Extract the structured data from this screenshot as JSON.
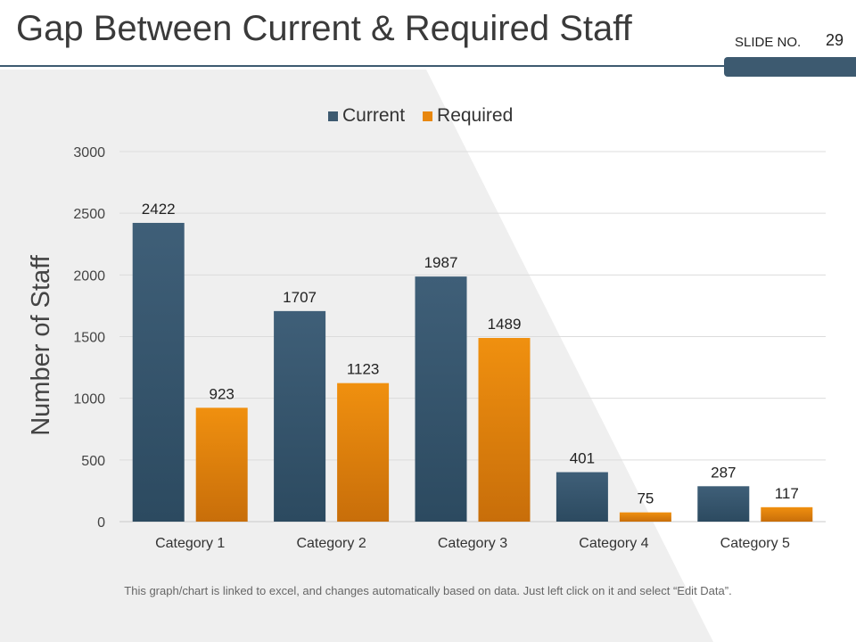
{
  "slide": {
    "title": "Gap Between Current & Required Staff",
    "slide_no_label": "SLIDE NO.",
    "slide_no": "29",
    "footnote": "This graph/chart is linked to excel, and changes automatically based on data. Just left click on it and select “Edit Data”."
  },
  "colors": {
    "current": "#3d5a70",
    "required": "#e8870f",
    "title_rule": "#3d5a70",
    "background_panel": "#efefef"
  },
  "chart_data": {
    "type": "bar",
    "title": "",
    "xlabel": "",
    "ylabel": "Number of Staff",
    "categories": [
      "Category 1",
      "Category 2",
      "Category 3",
      "Category 4",
      "Category 5"
    ],
    "series": [
      {
        "name": "Current",
        "values": [
          2422,
          1707,
          1987,
          401,
          287
        ]
      },
      {
        "name": "Required",
        "values": [
          923,
          1123,
          1489,
          75,
          117
        ]
      }
    ],
    "ylim": [
      0,
      3000
    ],
    "yticks": [
      0,
      500,
      1000,
      1500,
      2000,
      2500,
      3000
    ],
    "grid": true,
    "legend": "top-center",
    "data_labels": true
  }
}
